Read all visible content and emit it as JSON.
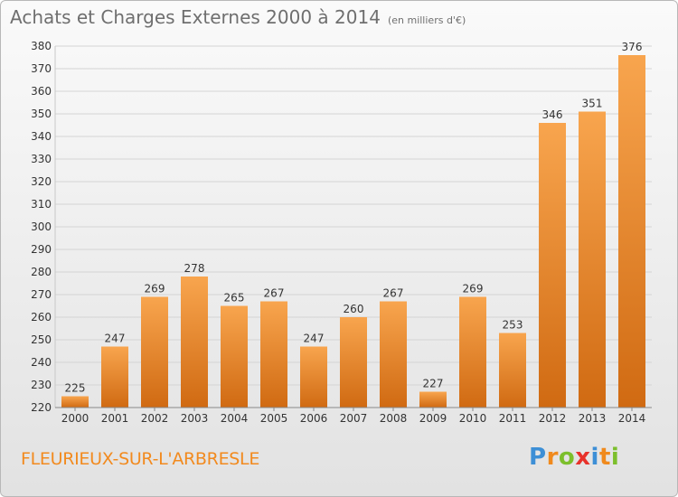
{
  "title": "Achats et Charges Externes 2000 à 2014",
  "subtitle": "(en milliers d'€)",
  "commune": "FLEURIEUX-SUR-L'ARBRESLE",
  "logo": {
    "letters": [
      "P",
      "r",
      "o",
      "x",
      "i",
      "t",
      "i"
    ],
    "colors": [
      "#3d8fd6",
      "#f08a1d",
      "#7cbf2c",
      "#e8322b",
      "#3d8fd6",
      "#f08a1d",
      "#7cbf2c"
    ]
  },
  "colors": {
    "bar_top": "#f8a54e",
    "bar_bottom": "#d06a12",
    "grid": "#d4d4d4",
    "axis_text": "#333333",
    "title": "#6f6f6f",
    "commune": "#f28a1e"
  },
  "chart_data": {
    "type": "bar",
    "categories": [
      "2000",
      "2001",
      "2002",
      "2003",
      "2004",
      "2005",
      "2006",
      "2007",
      "2008",
      "2009",
      "2010",
      "2011",
      "2012",
      "2013",
      "2014"
    ],
    "values": [
      225,
      247,
      269,
      278,
      265,
      267,
      247,
      260,
      267,
      227,
      269,
      253,
      346,
      351,
      376
    ],
    "ylim": [
      220,
      380
    ],
    "yticks": [
      220,
      230,
      240,
      250,
      260,
      270,
      280,
      290,
      300,
      310,
      320,
      330,
      340,
      350,
      360,
      370,
      380
    ],
    "grid": true,
    "data_labels": true
  }
}
